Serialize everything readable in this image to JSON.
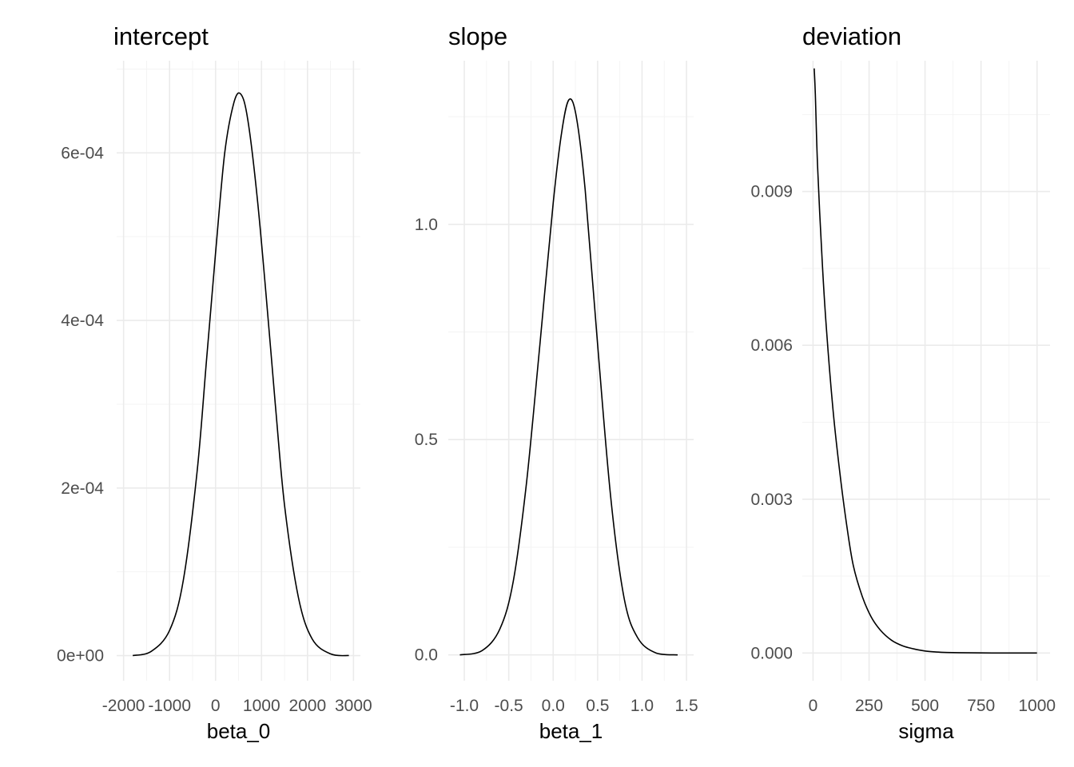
{
  "chart_data": [
    {
      "type": "line",
      "title": "intercept",
      "xlabel": "beta_0",
      "ylabel": "",
      "xlim": [
        -2150,
        3150
      ],
      "ylim": [
        -3e-05,
        0.00071
      ],
      "x_ticks": [
        -2000,
        -1000,
        0,
        1000,
        2000,
        3000
      ],
      "x_tick_labels": [
        "-2000",
        "-1000",
        "0",
        "1000",
        "2000",
        "3000"
      ],
      "y_ticks": [
        0,
        0.0002,
        0.0004,
        0.0006
      ],
      "y_tick_labels": [
        "0e+00",
        "2e-04",
        "4e-04",
        "6e-04"
      ],
      "grid": true,
      "series": [
        {
          "x": [
            -1800,
            -1400,
            -1000,
            -700,
            -400,
            -200,
            0,
            200,
            400,
            550,
            700,
            900,
            1100,
            1300,
            1500,
            1800,
            2100,
            2500,
            2900
          ],
          "y": [
            0.0,
            5e-06,
            3e-05,
            9e-05,
            0.00022,
            0.00035,
            0.00048,
            0.0006,
            0.00066,
            0.00067,
            0.00064,
            0.00055,
            0.00043,
            0.0003,
            0.00018,
            7e-05,
            2e-05,
            2e-06,
            0.0
          ]
        }
      ]
    },
    {
      "type": "line",
      "title": "slope",
      "xlabel": "beta_1",
      "ylabel": "",
      "xlim": [
        -1.18,
        1.58
      ],
      "ylim": [
        -0.06,
        1.38
      ],
      "x_ticks": [
        -1.0,
        -0.5,
        0.0,
        0.5,
        1.0,
        1.5
      ],
      "x_tick_labels": [
        "-1.0",
        "-0.5",
        "0.0",
        "0.5",
        "1.0",
        "1.5"
      ],
      "y_ticks": [
        0.0,
        0.5,
        1.0
      ],
      "y_tick_labels": [
        "0.0",
        "0.5",
        "1.0"
      ],
      "grid": true,
      "series": [
        {
          "x": [
            -1.05,
            -0.8,
            -0.6,
            -0.45,
            -0.3,
            -0.15,
            0.0,
            0.1,
            0.18,
            0.26,
            0.36,
            0.5,
            0.65,
            0.8,
            0.95,
            1.15,
            1.4
          ],
          "y": [
            0.0,
            0.01,
            0.06,
            0.17,
            0.4,
            0.72,
            1.05,
            1.22,
            1.29,
            1.25,
            1.08,
            0.72,
            0.36,
            0.13,
            0.04,
            0.005,
            0.0
          ]
        }
      ]
    },
    {
      "type": "line",
      "title": "deviation",
      "xlabel": "sigma",
      "ylabel": "",
      "xlim": [
        -48,
        1058
      ],
      "ylim": [
        -0.00054,
        0.01155
      ],
      "x_ticks": [
        0,
        250,
        500,
        750,
        1000
      ],
      "x_tick_labels": [
        "0",
        "250",
        "500",
        "750",
        "1000"
      ],
      "y_ticks": [
        0.0,
        0.003,
        0.006,
        0.009
      ],
      "y_tick_labels": [
        "0.000",
        "0.003",
        "0.006",
        "0.009"
      ],
      "grid": true,
      "series": [
        {
          "x": [
            5,
            10,
            20,
            40,
            60,
            90,
            120,
            150,
            180,
            220,
            260,
            300,
            350,
            400,
            450,
            500,
            550,
            600,
            700,
            800,
            900,
            1000
          ],
          "y": [
            0.0114,
            0.0109,
            0.0095,
            0.0077,
            0.0063,
            0.0047,
            0.0035,
            0.0025,
            0.0017,
            0.0011,
            0.0007,
            0.00045,
            0.00025,
            0.00014,
            8e-05,
            4e-05,
            2e-05,
            1e-05,
            3e-06,
            1e-06,
            0.0,
            0.0
          ]
        }
      ]
    }
  ]
}
